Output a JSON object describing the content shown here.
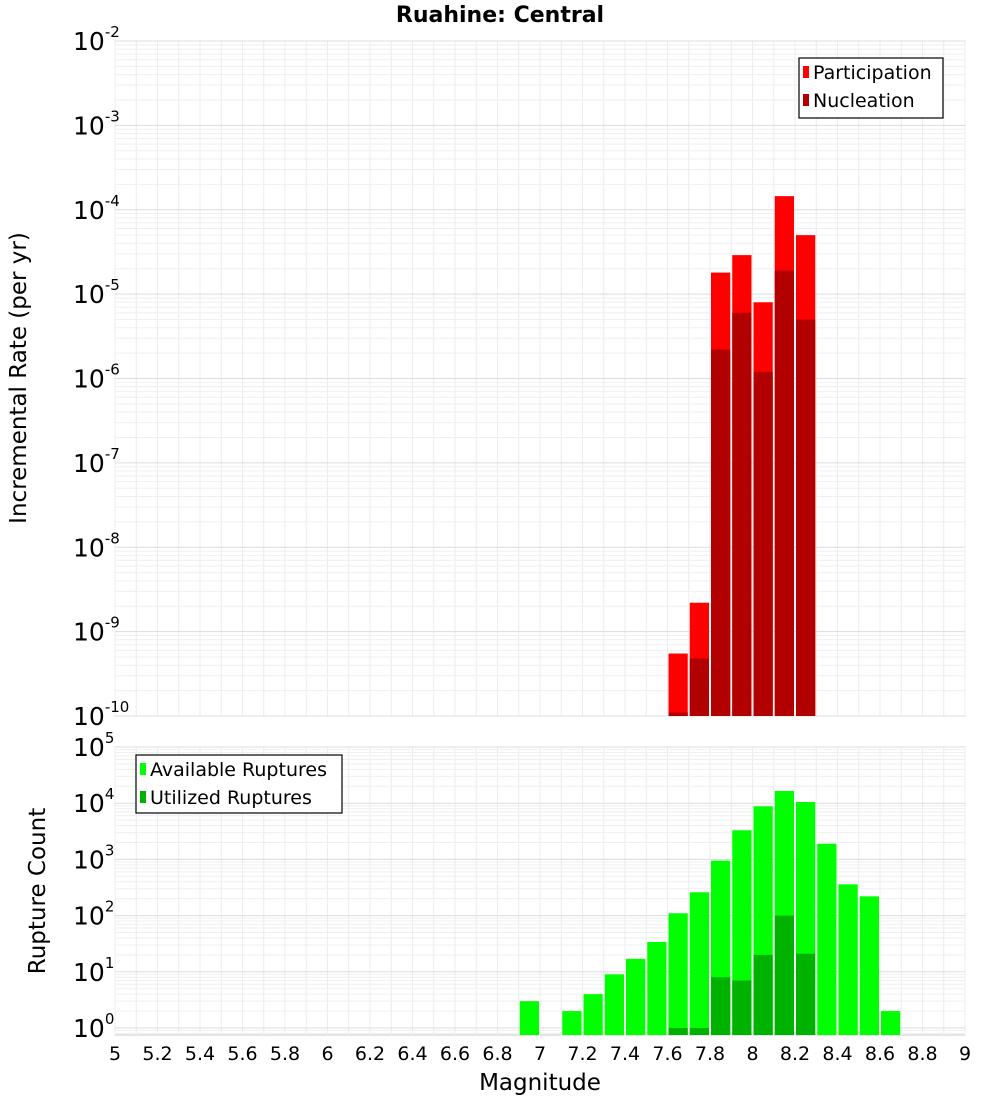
{
  "chart_data": [
    {
      "type": "bar",
      "title": "Ruahine: Central",
      "xlabel": "",
      "ylabel": "Incremental Rate (per yr)",
      "yscale": "log",
      "ylim": [
        1e-10,
        0.01
      ],
      "xlim": [
        5,
        9
      ],
      "bin_width": 0.1,
      "yticks": [
        {
          "base": "10",
          "exp": "-10"
        },
        {
          "base": "10",
          "exp": "-9"
        },
        {
          "base": "10",
          "exp": "-8"
        },
        {
          "base": "10",
          "exp": "-7"
        },
        {
          "base": "10",
          "exp": "-6"
        },
        {
          "base": "10",
          "exp": "-5"
        },
        {
          "base": "10",
          "exp": "-4"
        },
        {
          "base": "10",
          "exp": "-3"
        },
        {
          "base": "10",
          "exp": "-2"
        }
      ],
      "legend": "top-right",
      "grid": true,
      "series": [
        {
          "name": "Participation",
          "color": "#ff0000",
          "x": [
            7.65,
            7.75,
            7.85,
            7.95,
            8.05,
            8.15,
            8.25
          ],
          "values": [
            5.5e-10,
            2.2e-09,
            1.8e-05,
            2.9e-05,
            8e-06,
            0.000145,
            5e-05
          ]
        },
        {
          "name": "Nucleation",
          "color": "#b20000",
          "x": [
            7.65,
            7.75,
            7.85,
            7.95,
            8.05,
            8.15,
            8.25
          ],
          "values": [
            1.1e-10,
            4.8e-10,
            2.2e-06,
            6e-06,
            1.2e-06,
            1.9e-05,
            5e-06
          ]
        }
      ]
    },
    {
      "type": "bar",
      "title": "",
      "xlabel": "Magnitude",
      "ylabel": "Rupture Count",
      "yscale": "log",
      "ylim": [
        0.75,
        100000.0
      ],
      "xlim": [
        5,
        9
      ],
      "bin_width": 0.1,
      "xticks": [
        "5",
        "5.2",
        "5.4",
        "5.6",
        "5.8",
        "6",
        "6.2",
        "6.4",
        "6.6",
        "6.8",
        "7",
        "7.2",
        "7.4",
        "7.6",
        "7.8",
        "8",
        "8.2",
        "8.4",
        "8.6",
        "8.8",
        "9"
      ],
      "yticks": [
        {
          "base": "10",
          "exp": "0"
        },
        {
          "base": "10",
          "exp": "1"
        },
        {
          "base": "10",
          "exp": "2"
        },
        {
          "base": "10",
          "exp": "3"
        },
        {
          "base": "10",
          "exp": "4"
        },
        {
          "base": "10",
          "exp": "5"
        }
      ],
      "legend": "top-left",
      "grid": true,
      "series": [
        {
          "name": "Available Ruptures",
          "color": "#00ff00",
          "x": [
            6.95,
            7.15,
            7.25,
            7.35,
            7.45,
            7.55,
            7.65,
            7.75,
            7.85,
            7.95,
            8.05,
            8.15,
            8.25,
            8.35,
            8.45,
            8.55,
            8.65
          ],
          "values": [
            3,
            2,
            4,
            9,
            17,
            34,
            110,
            260,
            950,
            3300,
            8800,
            16500,
            10500,
            1900,
            360,
            220,
            2
          ]
        },
        {
          "name": "Utilized Ruptures",
          "color": "#00b200",
          "x": [
            7.65,
            7.75,
            7.85,
            7.95,
            8.05,
            8.15,
            8.25
          ],
          "values": [
            1,
            1,
            8,
            7,
            20,
            100,
            21
          ]
        }
      ]
    }
  ]
}
